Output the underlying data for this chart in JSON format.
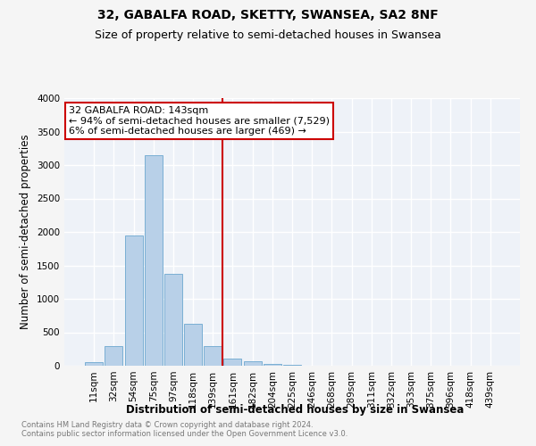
{
  "title": "32, GABALFA ROAD, SKETTY, SWANSEA, SA2 8NF",
  "subtitle": "Size of property relative to semi-detached houses in Swansea",
  "xlabel": "Distribution of semi-detached houses by size in Swansea",
  "ylabel": "Number of semi-detached properties",
  "footnote1": "Contains HM Land Registry data © Crown copyright and database right 2024.",
  "footnote2": "Contains public sector information licensed under the Open Government Licence v3.0.",
  "categories": [
    "11sqm",
    "32sqm",
    "54sqm",
    "75sqm",
    "97sqm",
    "118sqm",
    "139sqm",
    "161sqm",
    "182sqm",
    "204sqm",
    "225sqm",
    "246sqm",
    "268sqm",
    "289sqm",
    "311sqm",
    "332sqm",
    "353sqm",
    "375sqm",
    "396sqm",
    "418sqm",
    "439sqm"
  ],
  "values": [
    50,
    300,
    1950,
    3150,
    1375,
    625,
    300,
    110,
    70,
    25,
    8,
    4,
    2,
    1,
    0,
    0,
    0,
    0,
    0,
    0,
    0
  ],
  "bar_color": "#b8d0e8",
  "bar_edge_color": "#7aafd4",
  "vline_label": "32 GABALFA ROAD: 143sqm",
  "annotation_line1": "← 94% of semi-detached houses are smaller (7,529)",
  "annotation_line2": "6% of semi-detached houses are larger (469) →",
  "annotation_box_color": "#ffffff",
  "annotation_box_edge": "#cc0000",
  "vline_color": "#cc0000",
  "vline_index": 6.5,
  "ylim": [
    0,
    4000
  ],
  "yticks": [
    0,
    500,
    1000,
    1500,
    2000,
    2500,
    3000,
    3500,
    4000
  ],
  "bg_color": "#eef2f8",
  "grid_color": "#ffffff",
  "title_fontsize": 10,
  "subtitle_fontsize": 9,
  "axis_label_fontsize": 8.5,
  "tick_fontsize": 7.5,
  "footnote_fontsize": 6,
  "annotation_fontsize": 8
}
